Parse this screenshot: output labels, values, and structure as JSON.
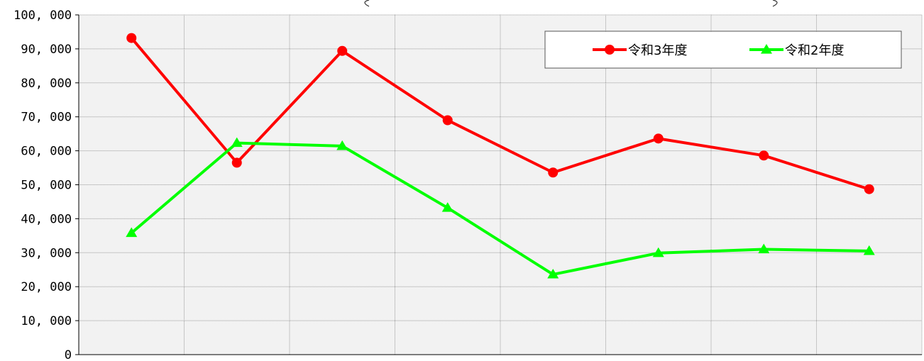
{
  "chart_data": {
    "type": "line",
    "x": [
      1,
      2,
      3,
      4,
      5,
      6,
      7,
      8
    ],
    "ylim": [
      0,
      100000
    ],
    "yticks": [
      0,
      10000,
      20000,
      30000,
      40000,
      50000,
      60000,
      70000,
      80000,
      90000,
      100000
    ],
    "ytick_labels": [
      "0",
      "10, 000",
      "20, 000",
      "30, 000",
      "40, 000",
      "50, 000",
      "60, 000",
      "70, 000",
      "80, 000",
      "90, 000",
      "100, 000"
    ],
    "grid": true,
    "legend_position": "top-right",
    "series": [
      {
        "name": "令和3年度",
        "color": "#ff0000",
        "marker": "circle",
        "values": [
          93200,
          56500,
          89400,
          69000,
          53600,
          63600,
          58600,
          48700
        ]
      },
      {
        "name": "令和2年度",
        "color": "#00ff00",
        "marker": "triangle",
        "values": [
          35800,
          62300,
          61400,
          43200,
          23600,
          29900,
          31000,
          30500
        ]
      }
    ]
  }
}
